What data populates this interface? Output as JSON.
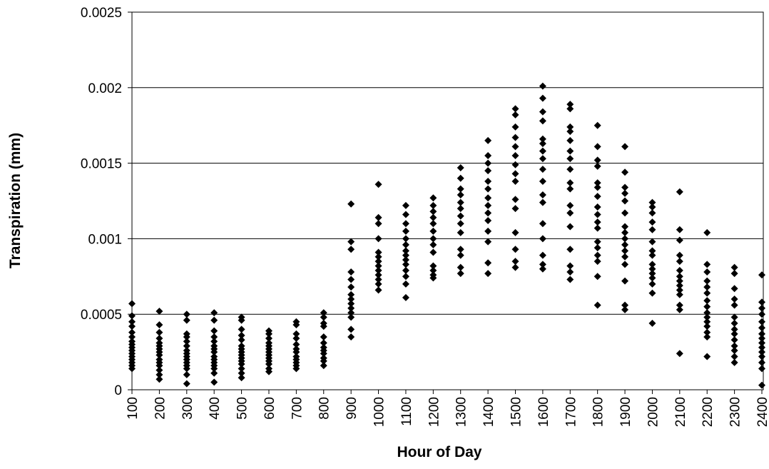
{
  "chart_data": {
    "type": "scatter",
    "x_label": "Hour of Day",
    "y_label": "Transpiration (mm)",
    "color": "#000000",
    "marker": "diamond",
    "grid": true,
    "xlim": [
      100,
      2400
    ],
    "xticks": [
      100,
      200,
      300,
      400,
      500,
      600,
      700,
      800,
      900,
      1000,
      1100,
      1200,
      1300,
      1400,
      1500,
      1600,
      1700,
      1800,
      1900,
      2000,
      2100,
      2200,
      2300,
      2400
    ],
    "ylim": [
      0,
      0.0025
    ],
    "yticks": [
      0,
      0.0005,
      0.001,
      0.0015,
      0.002,
      0.0025
    ],
    "groups": [
      {
        "x": 100,
        "values": [
          0.00057,
          0.00049,
          0.00045,
          0.00042,
          0.00038,
          0.00035,
          0.00032,
          0.0003,
          0.00028,
          0.00026,
          0.00024,
          0.00022,
          0.0002,
          0.00018,
          0.00016,
          0.00014
        ]
      },
      {
        "x": 200,
        "values": [
          0.00052,
          0.00043,
          0.00038,
          0.00034,
          0.00031,
          0.00029,
          0.00027,
          0.00025,
          0.00023,
          0.0002,
          0.00018,
          0.00016,
          0.00013,
          0.0001,
          7e-05
        ]
      },
      {
        "x": 300,
        "values": [
          0.0005,
          0.00046,
          0.00037,
          0.00035,
          0.00032,
          0.00029,
          0.00026,
          0.00024,
          0.00022,
          0.0002,
          0.00018,
          0.00016,
          0.00014,
          0.0001,
          4e-05
        ]
      },
      {
        "x": 400,
        "values": [
          0.00051,
          0.00046,
          0.00039,
          0.00035,
          0.00032,
          0.00029,
          0.00027,
          0.00025,
          0.00022,
          0.0002,
          0.00018,
          0.00016,
          0.00014,
          0.00011,
          5e-05
        ]
      },
      {
        "x": 500,
        "values": [
          0.00048,
          0.00046,
          0.0004,
          0.00036,
          0.00033,
          0.00029,
          0.00027,
          0.00025,
          0.00023,
          0.00021,
          0.00019,
          0.00017,
          0.00014,
          0.00011,
          8e-05
        ]
      },
      {
        "x": 600,
        "values": [
          0.00039,
          0.00037,
          0.00034,
          0.00031,
          0.00029,
          0.00027,
          0.00025,
          0.00023,
          0.00021,
          0.00019,
          0.00017,
          0.00014,
          0.00012
        ]
      },
      {
        "x": 700,
        "values": [
          0.00045,
          0.00043,
          0.00037,
          0.00034,
          0.0003,
          0.00027,
          0.00025,
          0.00022,
          0.0002,
          0.00018,
          0.00016,
          0.00014
        ]
      },
      {
        "x": 800,
        "values": [
          0.00051,
          0.00048,
          0.00044,
          0.00042,
          0.00035,
          0.00031,
          0.00028,
          0.00026,
          0.00024,
          0.00021,
          0.00019,
          0.00016
        ]
      },
      {
        "x": 900,
        "values": [
          0.00123,
          0.00098,
          0.00093,
          0.00078,
          0.00073,
          0.00068,
          0.00063,
          0.0006,
          0.00057,
          0.00054,
          0.00051,
          0.00048,
          0.0004,
          0.00035
        ]
      },
      {
        "x": 1000,
        "values": [
          0.00136,
          0.00114,
          0.0011,
          0.001,
          0.00091,
          0.00088,
          0.00085,
          0.00082,
          0.00079,
          0.00076,
          0.00073,
          0.0007,
          0.00066
        ]
      },
      {
        "x": 1100,
        "values": [
          0.00122,
          0.00116,
          0.0011,
          0.00105,
          0.001,
          0.00096,
          0.00092,
          0.00089,
          0.00086,
          0.00083,
          0.00079,
          0.00075,
          0.0007,
          0.00061
        ]
      },
      {
        "x": 1200,
        "values": [
          0.00127,
          0.00122,
          0.00118,
          0.00114,
          0.0011,
          0.00105,
          0.001,
          0.00096,
          0.00091,
          0.00082,
          0.00079,
          0.00076,
          0.00074
        ]
      },
      {
        "x": 1300,
        "values": [
          0.00147,
          0.0014,
          0.00133,
          0.00129,
          0.00124,
          0.0012,
          0.00115,
          0.0011,
          0.00104,
          0.00093,
          0.00089,
          0.00081,
          0.00077
        ]
      },
      {
        "x": 1400,
        "values": [
          0.00165,
          0.00155,
          0.0015,
          0.00145,
          0.00138,
          0.00133,
          0.00127,
          0.00122,
          0.00117,
          0.00112,
          0.00105,
          0.00098,
          0.00084,
          0.00077
        ]
      },
      {
        "x": 1500,
        "values": [
          0.00186,
          0.00182,
          0.00174,
          0.00167,
          0.00161,
          0.00155,
          0.00149,
          0.00143,
          0.00138,
          0.00126,
          0.0012,
          0.00104,
          0.00093,
          0.00085,
          0.00081
        ]
      },
      {
        "x": 1600,
        "values": [
          0.00201,
          0.00193,
          0.00184,
          0.00178,
          0.00166,
          0.00163,
          0.00158,
          0.00153,
          0.00146,
          0.00138,
          0.00129,
          0.00124,
          0.0011,
          0.001,
          0.00089,
          0.00083,
          0.0008
        ]
      },
      {
        "x": 1700,
        "values": [
          0.00189,
          0.00186,
          0.00174,
          0.00171,
          0.00165,
          0.00158,
          0.00153,
          0.00146,
          0.00137,
          0.00133,
          0.00122,
          0.00117,
          0.00108,
          0.00093,
          0.00082,
          0.00078,
          0.00073
        ]
      },
      {
        "x": 1800,
        "values": [
          0.00175,
          0.00161,
          0.00152,
          0.00148,
          0.00137,
          0.00134,
          0.00128,
          0.00121,
          0.00116,
          0.00111,
          0.00107,
          0.00098,
          0.00094,
          0.00089,
          0.00085,
          0.00075,
          0.00056
        ]
      },
      {
        "x": 1900,
        "values": [
          0.00161,
          0.00144,
          0.00134,
          0.0013,
          0.00125,
          0.00117,
          0.00108,
          0.00104,
          0.001,
          0.00096,
          0.00092,
          0.00088,
          0.00083,
          0.00072,
          0.00056,
          0.00053
        ]
      },
      {
        "x": 2000,
        "values": [
          0.00124,
          0.00121,
          0.00117,
          0.00111,
          0.00106,
          0.00098,
          0.00092,
          0.00089,
          0.00083,
          0.0008,
          0.00077,
          0.00074,
          0.0007,
          0.00064,
          0.00044
        ]
      },
      {
        "x": 2100,
        "values": [
          0.00131,
          0.00106,
          0.00099,
          0.00089,
          0.00085,
          0.00079,
          0.00075,
          0.00072,
          0.00069,
          0.00066,
          0.00063,
          0.00056,
          0.00053,
          0.00024
        ]
      },
      {
        "x": 2200,
        "values": [
          0.00104,
          0.00083,
          0.00078,
          0.00072,
          0.00068,
          0.00064,
          0.00059,
          0.00055,
          0.00051,
          0.00048,
          0.00045,
          0.00042,
          0.00038,
          0.00035,
          0.00022
        ]
      },
      {
        "x": 2300,
        "values": [
          0.00081,
          0.00077,
          0.00067,
          0.0006,
          0.00056,
          0.00048,
          0.00044,
          0.0004,
          0.00037,
          0.00033,
          0.00029,
          0.00026,
          0.00022,
          0.00018
        ]
      },
      {
        "x": 2400,
        "values": [
          0.00076,
          0.00058,
          0.00054,
          0.0005,
          0.00045,
          0.00041,
          0.00037,
          0.00034,
          0.00031,
          0.00028,
          0.00025,
          0.00022,
          0.00018,
          0.00014,
          3e-05
        ]
      }
    ]
  }
}
